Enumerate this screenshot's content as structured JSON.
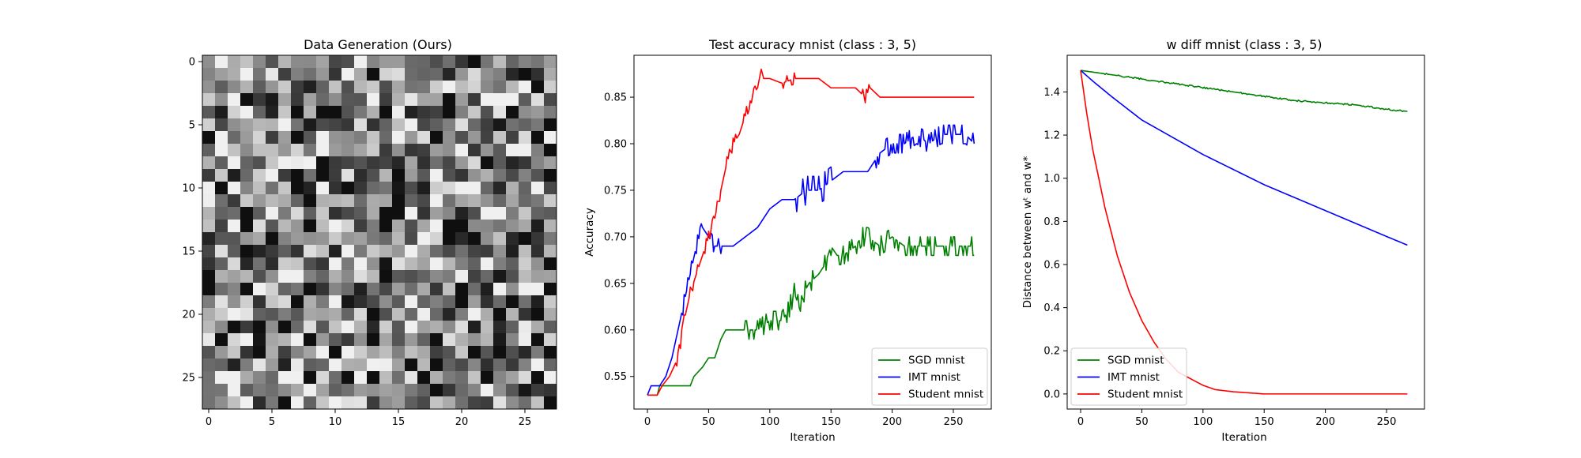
{
  "chart_data": [
    {
      "type": "heatmap",
      "title": "Data Generation (Ours)",
      "xlabel": "",
      "ylabel": "",
      "size": [
        28,
        28
      ],
      "colormap": "gray",
      "xticks": [
        0,
        5,
        10,
        15,
        20,
        25
      ],
      "yticks": [
        0,
        5,
        10,
        15,
        20,
        25
      ],
      "pattern": "random gray noise"
    },
    {
      "type": "line",
      "title": "Test accuracy mnist (class : 3, 5)",
      "xlabel": "Iteration",
      "ylabel": "Accuracy",
      "xlim": [
        -11,
        281
      ],
      "ylim": [
        0.515,
        0.895
      ],
      "xticks": [
        0,
        50,
        100,
        150,
        200,
        250
      ],
      "yticks": [
        0.55,
        0.6,
        0.65,
        0.7,
        0.75,
        0.8,
        0.85
      ],
      "legend_position": "lower-right",
      "series": [
        {
          "name": "SGD mnist",
          "color": "#008000",
          "noise": [
            [
              35,
              80,
              0.0
            ],
            [
              80,
              160,
              0.01
            ],
            [
              160,
              268,
              0.01
            ]
          ],
          "points": [
            [
              0,
              0.53
            ],
            [
              8,
              0.53
            ],
            [
              10,
              0.54
            ],
            [
              20,
              0.54
            ],
            [
              35,
              0.54
            ],
            [
              38,
              0.55
            ],
            [
              45,
              0.56
            ],
            [
              50,
              0.57
            ],
            [
              55,
              0.57
            ],
            [
              60,
              0.59
            ],
            [
              64,
              0.6
            ],
            [
              80,
              0.6
            ],
            [
              90,
              0.6
            ],
            [
              100,
              0.61
            ],
            [
              110,
              0.61
            ],
            [
              115,
              0.62
            ],
            [
              120,
              0.64
            ],
            [
              125,
              0.62
            ],
            [
              128,
              0.64
            ],
            [
              132,
              0.65
            ],
            [
              140,
              0.66
            ],
            [
              145,
              0.67
            ],
            [
              150,
              0.69
            ],
            [
              155,
              0.68
            ],
            [
              160,
              0.68
            ],
            [
              170,
              0.69
            ],
            [
              175,
              0.7
            ],
            [
              180,
              0.7
            ],
            [
              190,
              0.69
            ],
            [
              200,
              0.7
            ],
            [
              210,
              0.69
            ],
            [
              220,
              0.69
            ],
            [
              230,
              0.69
            ],
            [
              240,
              0.69
            ],
            [
              250,
              0.69
            ],
            [
              260,
              0.69
            ],
            [
              267,
              0.69
            ]
          ]
        },
        {
          "name": "IMT mnist",
          "color": "#0000ff",
          "noise": [
            [
              28,
              60,
              0.008
            ],
            [
              120,
              150,
              0.015
            ],
            [
              185,
              268,
              0.01
            ]
          ],
          "points": [
            [
              0,
              0.53
            ],
            [
              3,
              0.54
            ],
            [
              10,
              0.54
            ],
            [
              15,
              0.55
            ],
            [
              20,
              0.57
            ],
            [
              25,
              0.6
            ],
            [
              30,
              0.63
            ],
            [
              35,
              0.66
            ],
            [
              40,
              0.69
            ],
            [
              45,
              0.71
            ],
            [
              50,
              0.7
            ],
            [
              55,
              0.69
            ],
            [
              60,
              0.69
            ],
            [
              70,
              0.69
            ],
            [
              80,
              0.7
            ],
            [
              90,
              0.71
            ],
            [
              95,
              0.72
            ],
            [
              100,
              0.73
            ],
            [
              110,
              0.74
            ],
            [
              120,
              0.74
            ],
            [
              130,
              0.75
            ],
            [
              140,
              0.75
            ],
            [
              150,
              0.76
            ],
            [
              160,
              0.77
            ],
            [
              170,
              0.77
            ],
            [
              180,
              0.77
            ],
            [
              190,
              0.79
            ],
            [
              200,
              0.8
            ],
            [
              210,
              0.8
            ],
            [
              220,
              0.81
            ],
            [
              230,
              0.8
            ],
            [
              240,
              0.81
            ],
            [
              250,
              0.81
            ],
            [
              260,
              0.81
            ],
            [
              267,
              0.8
            ]
          ]
        },
        {
          "name": "Student mnist",
          "color": "#ff0000",
          "noise": [
            [
              20,
              90,
              0.006
            ],
            [
              110,
              120,
              0.006
            ],
            [
              175,
              182,
              0.006
            ]
          ],
          "points": [
            [
              0,
              0.53
            ],
            [
              8,
              0.53
            ],
            [
              12,
              0.54
            ],
            [
              18,
              0.55
            ],
            [
              25,
              0.57
            ],
            [
              30,
              0.61
            ],
            [
              35,
              0.64
            ],
            [
              40,
              0.66
            ],
            [
              45,
              0.68
            ],
            [
              50,
              0.7
            ],
            [
              55,
              0.72
            ],
            [
              60,
              0.75
            ],
            [
              65,
              0.78
            ],
            [
              70,
              0.8
            ],
            [
              75,
              0.81
            ],
            [
              80,
              0.83
            ],
            [
              85,
              0.85
            ],
            [
              90,
              0.86
            ],
            [
              93,
              0.88
            ],
            [
              95,
              0.87
            ],
            [
              100,
              0.87
            ],
            [
              110,
              0.865
            ],
            [
              120,
              0.87
            ],
            [
              130,
              0.87
            ],
            [
              140,
              0.87
            ],
            [
              150,
              0.86
            ],
            [
              160,
              0.86
            ],
            [
              170,
              0.86
            ],
            [
              178,
              0.85
            ],
            [
              182,
              0.86
            ],
            [
              190,
              0.85
            ],
            [
              200,
              0.85
            ],
            [
              220,
              0.85
            ],
            [
              240,
              0.85
            ],
            [
              267,
              0.85
            ]
          ]
        }
      ]
    },
    {
      "type": "line",
      "title": "w diff mnist (class : 3, 5)",
      "xlabel": "Iteration",
      "ylabel": "Distance between wᵗ and w*",
      "xlim": [
        -11,
        281
      ],
      "ylim": [
        -0.07,
        1.57
      ],
      "xticks": [
        0,
        50,
        100,
        150,
        200,
        250
      ],
      "yticks": [
        0.0,
        0.2,
        0.4,
        0.6,
        0.8,
        1.0,
        1.2,
        1.4
      ],
      "legend_position": "lower-left",
      "series": [
        {
          "name": "SGD mnist",
          "color": "#008000",
          "noise": [
            [
              20,
              268,
              0.003
            ]
          ],
          "points": [
            [
              0,
              1.5
            ],
            [
              25,
              1.48
            ],
            [
              50,
              1.46
            ],
            [
              75,
              1.44
            ],
            [
              100,
              1.42
            ],
            [
              125,
              1.4
            ],
            [
              150,
              1.38
            ],
            [
              175,
              1.36
            ],
            [
              200,
              1.35
            ],
            [
              225,
              1.34
            ],
            [
              250,
              1.32
            ],
            [
              267,
              1.31
            ]
          ]
        },
        {
          "name": "IMT mnist",
          "color": "#0000ff",
          "noise": [],
          "points": [
            [
              0,
              1.5
            ],
            [
              10,
              1.45
            ],
            [
              25,
              1.38
            ],
            [
              50,
              1.27
            ],
            [
              75,
              1.19
            ],
            [
              100,
              1.11
            ],
            [
              125,
              1.04
            ],
            [
              150,
              0.97
            ],
            [
              175,
              0.91
            ],
            [
              200,
              0.85
            ],
            [
              225,
              0.79
            ],
            [
              250,
              0.73
            ],
            [
              267,
              0.69
            ]
          ]
        },
        {
          "name": "Student mnist",
          "color": "#ff0000",
          "noise": [],
          "points": [
            [
              0,
              1.5
            ],
            [
              5,
              1.3
            ],
            [
              10,
              1.13
            ],
            [
              20,
              0.86
            ],
            [
              30,
              0.64
            ],
            [
              40,
              0.47
            ],
            [
              50,
              0.34
            ],
            [
              60,
              0.24
            ],
            [
              70,
              0.16
            ],
            [
              80,
              0.1
            ],
            [
              90,
              0.07
            ],
            [
              100,
              0.04
            ],
            [
              110,
              0.02
            ],
            [
              125,
              0.01
            ],
            [
              150,
              0.0
            ],
            [
              200,
              0.0
            ],
            [
              267,
              0.0
            ]
          ]
        }
      ]
    }
  ]
}
